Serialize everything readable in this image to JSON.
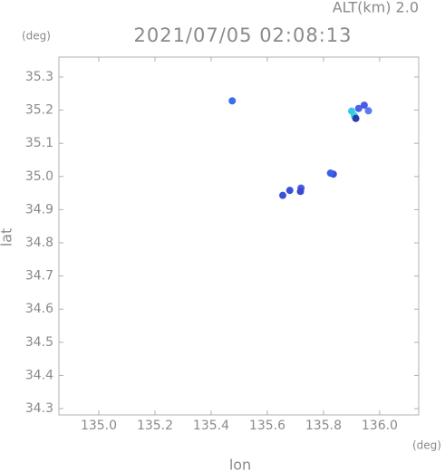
{
  "chart_data": {
    "type": "scatter",
    "header": "ALT(km) 2.0",
    "title": "2021/07/05 02:08:13",
    "x_unit": "(deg)",
    "y_unit": "(deg)",
    "x_label": "lon",
    "y_label": "lat",
    "x": [
      135.475,
      135.9,
      135.925,
      135.945,
      135.96,
      135.91,
      135.915,
      135.835,
      135.825,
      135.72,
      135.718,
      135.68,
      135.655
    ],
    "y": [
      35.228,
      35.197,
      35.205,
      35.215,
      35.198,
      35.183,
      35.175,
      35.007,
      35.01,
      34.965,
      34.955,
      34.958,
      34.943
    ],
    "colors": [
      "#3a6cf0",
      "#36c8e8",
      "#4a64e8",
      "#4a5ce0",
      "#5a7af0",
      "#3ad0e0",
      "#2a3ab0",
      "#3a50d8",
      "#3a60e8",
      "#4a5ce0",
      "#3a4ad0",
      "#3a50d8",
      "#3a50d8"
    ],
    "xlim": [
      134.858,
      136.139
    ],
    "ylim": [
      34.281,
      35.36
    ],
    "xticks": [
      {
        "value": 135.0,
        "label": "135.0"
      },
      135.2,
      135.4,
      135.6,
      135.8,
      {
        "value": 136.0,
        "label": "136.0"
      }
    ],
    "yticks": [
      35.3,
      35.2,
      35.1,
      {
        "value": 35.0,
        "label": "35.0"
      },
      34.9,
      34.8,
      34.7,
      34.6,
      34.5,
      34.4,
      34.3
    ]
  }
}
